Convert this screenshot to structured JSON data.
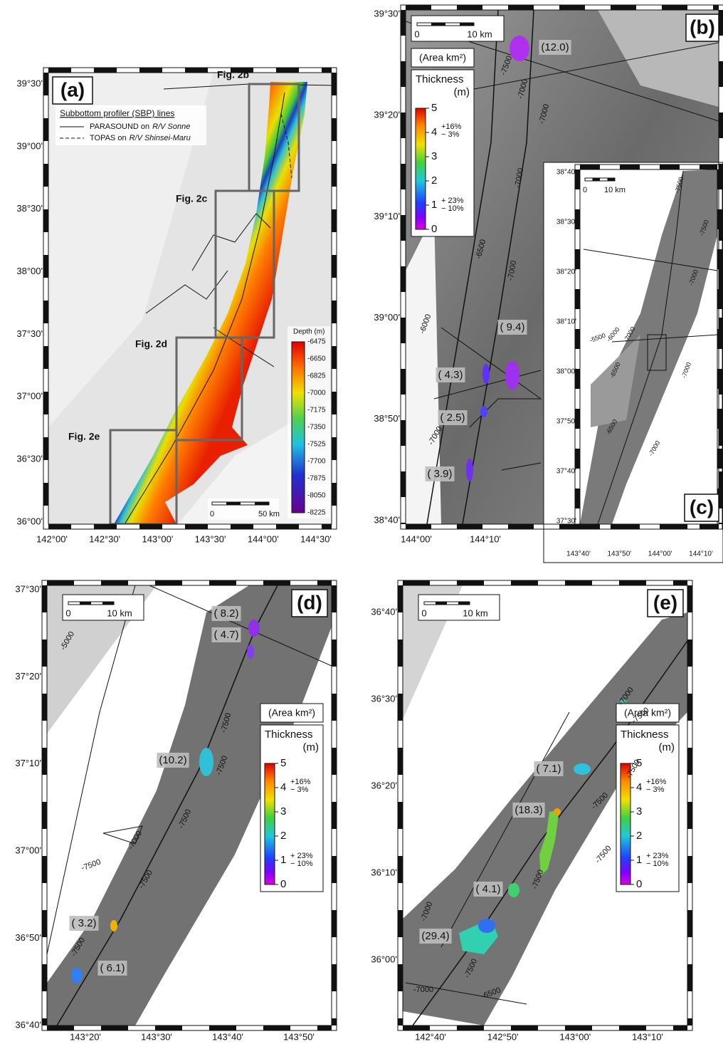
{
  "panel_a": {
    "label": "(a)",
    "lat_labels": [
      "39°30'",
      "39°00'",
      "38°30'",
      "38°00'",
      "37°30'",
      "37°00'",
      "36°30'",
      "36°00'"
    ],
    "lon_labels": [
      "142°00'",
      "142°30'",
      "143°00'",
      "143°30'",
      "144°00'",
      "144°30'"
    ],
    "legend": {
      "title": "Subbottom profiler (SBP) lines",
      "items": [
        {
          "text": "PARASOUND on",
          "vessel": "R/V Sonne"
        },
        {
          "text": "TOPAS on",
          "vessel": "R/V Shinsei-Maru"
        }
      ]
    },
    "figure_refs": [
      "Fig. 2b",
      "Fig. 2c",
      "Fig. 2d",
      "Fig. 2e"
    ],
    "depth_scale": {
      "title": "Depth (m)",
      "ticks": [
        -6475,
        -6650,
        -6825,
        -7000,
        -7175,
        -7350,
        -7525,
        -7700,
        -7875,
        -8050,
        -8225
      ]
    },
    "scale_bar": [
      "0",
      "50 km"
    ]
  },
  "panel_b": {
    "label": "(b)",
    "lat_labels": [
      "39°30'",
      "39°20'",
      "39°10'",
      "39°00'",
      "38°50'",
      "38°40'"
    ],
    "lon_labels": [
      "144°00'",
      "144°10'"
    ],
    "scale_bar": [
      "0",
      "10 km"
    ],
    "legend": {
      "area_title": "(Area km²)",
      "title": "Thickness",
      "unit": "(m)",
      "ticks": [
        5,
        4,
        3,
        2,
        1,
        0
      ],
      "upper_error": [
        "+16%",
        "− 3%"
      ],
      "lower_error": [
        "+ 23%",
        "− 10%"
      ]
    },
    "areas": [
      "(12.0)",
      "( 9.4)",
      "( 4.3)",
      "( 2.5)",
      "( 3.9)"
    ],
    "contours": [
      "-7500",
      "-7000",
      "-7000",
      "-7000",
      "-6500",
      "-7000",
      "-6000",
      "-7000"
    ]
  },
  "panel_c": {
    "label": "(c)",
    "lat_labels": [
      "38°40'",
      "38°30'",
      "38°20'",
      "38°10'",
      "38°00'",
      "37°50'",
      "37°40'",
      "37°30'"
    ],
    "lon_labels": [
      "143°40'",
      "143°50'",
      "144°00'",
      "144°10'"
    ],
    "scale_bar": [
      "0",
      "10 km"
    ],
    "contours": [
      "-7500",
      "-7500",
      "-7000",
      "-5500",
      "-6000",
      "-7000",
      "-6500",
      "-7000",
      "-6500",
      "-7000"
    ]
  },
  "panel_d": {
    "label": "(d)",
    "lat_labels": [
      "37°30'",
      "37°20'",
      "37°10'",
      "37°00'",
      "36°50'",
      "36°40'"
    ],
    "lon_labels": [
      "143°20'",
      "143°30'",
      "143°40'",
      "143°50'"
    ],
    "scale_bar": [
      "0",
      "10 km"
    ],
    "legend": {
      "area_title": "(Area km²)",
      "title": "Thickness",
      "unit": "(m)",
      "ticks": [
        5,
        4,
        3,
        2,
        1,
        0
      ],
      "upper_error": [
        "+16%",
        "− 3%"
      ],
      "lower_error": [
        "+ 23%",
        "− 10%"
      ]
    },
    "areas": [
      "( 8.2)",
      "( 4.7)",
      "(10.2)",
      "( 3.2)",
      "( 6.1)"
    ],
    "contours": [
      "-5000",
      "-7500",
      "-7500",
      "-7500",
      "-7500",
      "-7500",
      "-7500",
      "-7000"
    ]
  },
  "panel_e": {
    "label": "(e)",
    "lat_labels": [
      "36°40'",
      "36°30'",
      "36°20'",
      "36°10'",
      "36°00'"
    ],
    "lon_labels": [
      "142°40'",
      "142°50'",
      "143°00'",
      "143°10'"
    ],
    "scale_bar": [
      "0",
      "10 km"
    ],
    "legend": {
      "area_title": "(Area km²)",
      "title": "Thickness",
      "unit": "(m)",
      "ticks": [
        5,
        4,
        3,
        2,
        1,
        0
      ],
      "upper_error": [
        "+16%",
        "− 3%"
      ],
      "lower_error": [
        "+ 23%",
        "− 10%"
      ]
    },
    "areas": [
      "( 7.1)",
      "(18.3)",
      "( 4.1)",
      "(29.4)"
    ],
    "contours": [
      "-7000",
      "-7500",
      "-7500",
      "-7500",
      "-7500",
      "-7500",
      "-7000",
      "-7500",
      "-7000",
      "-6500"
    ]
  }
}
